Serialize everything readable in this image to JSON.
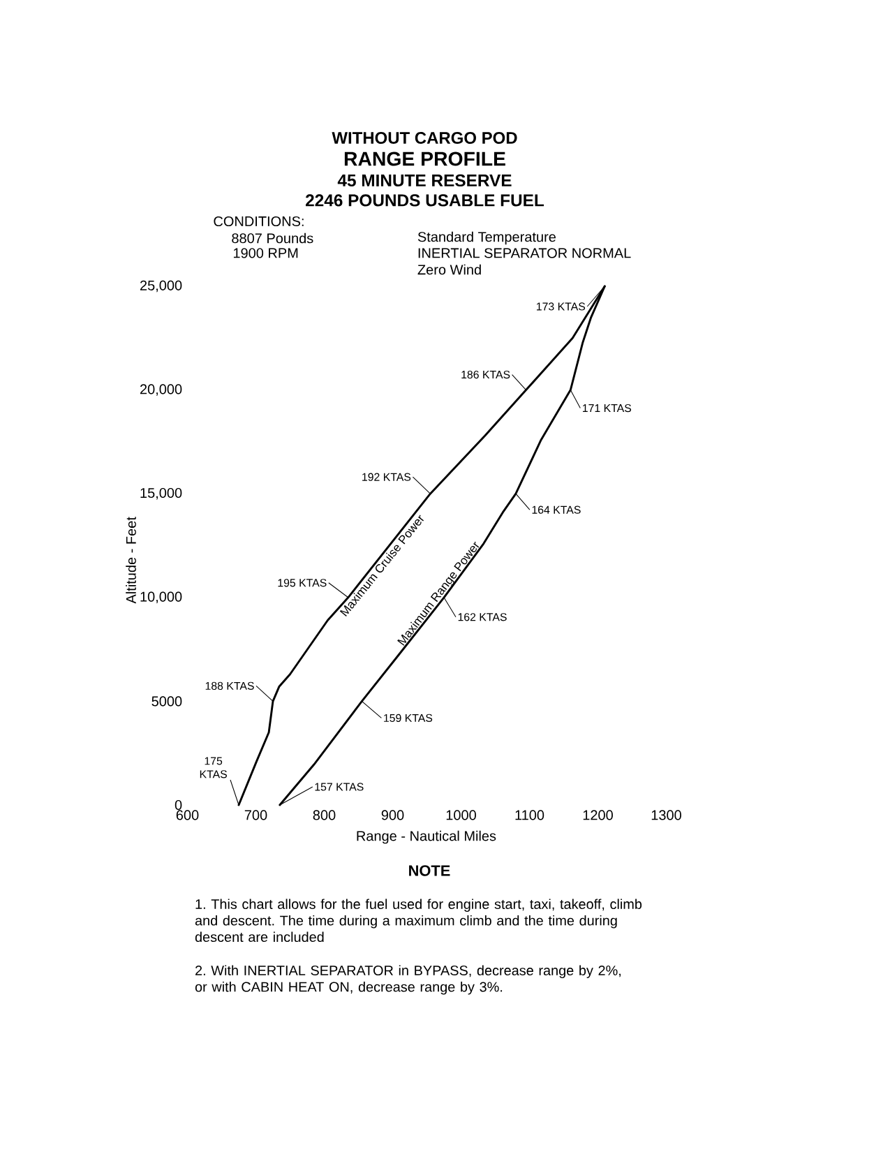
{
  "chart_data": {
    "type": "line",
    "title": "RANGE PROFILE",
    "subtitle": "45 MINUTE RESERVE",
    "xlabel": "Range - Nautical Miles",
    "ylabel": "Altitude - Feet",
    "xlim": [
      600,
      1300
    ],
    "ylim": [
      0,
      25000
    ],
    "xticks": [
      600,
      700,
      800,
      900,
      1000,
      1100,
      1200,
      1300
    ],
    "yticks": [
      0,
      5000,
      {
        "value": 10000,
        "label": "10,000"
      },
      {
        "value": 15000,
        "label": "15,000"
      },
      {
        "value": 20000,
        "label": "20,000"
      },
      {
        "value": 25000,
        "label": "25,000"
      }
    ],
    "line_style": "solid",
    "series": [
      {
        "name": "Maximum Cruise Power",
        "color": "#000000",
        "x": [
          675,
          701,
          719,
          725,
          734,
          750,
          805,
          835,
          955,
          1035,
          1095,
          1163,
          1210
        ],
        "values": [
          0,
          2100,
          3500,
          5000,
          5700,
          6300,
          8900,
          10000,
          15000,
          17800,
          20000,
          22500,
          25000
        ]
      },
      {
        "name": "Maximum Range Power",
        "color": "#000000",
        "x": [
          735,
          785,
          855,
          908,
          975,
          1033,
          1061,
          1080,
          1117,
          1160,
          1178,
          1190,
          1210
        ],
        "values": [
          0,
          1950,
          5000,
          7200,
          10000,
          12600,
          14100,
          15000,
          17600,
          20000,
          22300,
          23500,
          25000
        ]
      }
    ],
    "annotations": [
      "WITHOUT CARGO POD",
      "2246 POUNDS USABLE FUEL",
      "CONDITIONS:",
      "8807 Pounds",
      "1900 RPM",
      "Standard Temperature",
      "INERTIAL SEPARATOR NORMAL",
      "Zero Wind",
      "NOTE",
      "1. This chart allows for the fuel used for engine start, taxi, takeoff, climb and descent. The time during a maximum climb and the time during descent are included",
      "2. With INERTIAL SEPARATOR in BYPASS, decrease range by 2%, or with CABIN HEAT ON, decrease range by 3%.",
      {
        "text": "175 KTAS",
        "x": 675,
        "y": 0
      },
      {
        "text": "188 KTAS",
        "x": 725,
        "y": 5000
      },
      {
        "text": "195 KTAS",
        "x": 835,
        "y": 10000
      },
      {
        "text": "192 KTAS",
        "x": 955,
        "y": 15000
      },
      {
        "text": "186 KTAS",
        "x": 1095,
        "y": 20000
      },
      {
        "text": "173 KTAS",
        "x": 1210,
        "y": 25000
      },
      {
        "text": "171 KTAS",
        "x": 1160,
        "y": 20000
      },
      {
        "text": "164 KTAS",
        "x": 1080,
        "y": 15000
      },
      {
        "text": "162 KTAS",
        "x": 975,
        "y": 10000
      },
      {
        "text": "159 KTAS",
        "x": 855,
        "y": 5000
      },
      {
        "text": "157 KTAS",
        "x": 735,
        "y": 0
      }
    ]
  }
}
